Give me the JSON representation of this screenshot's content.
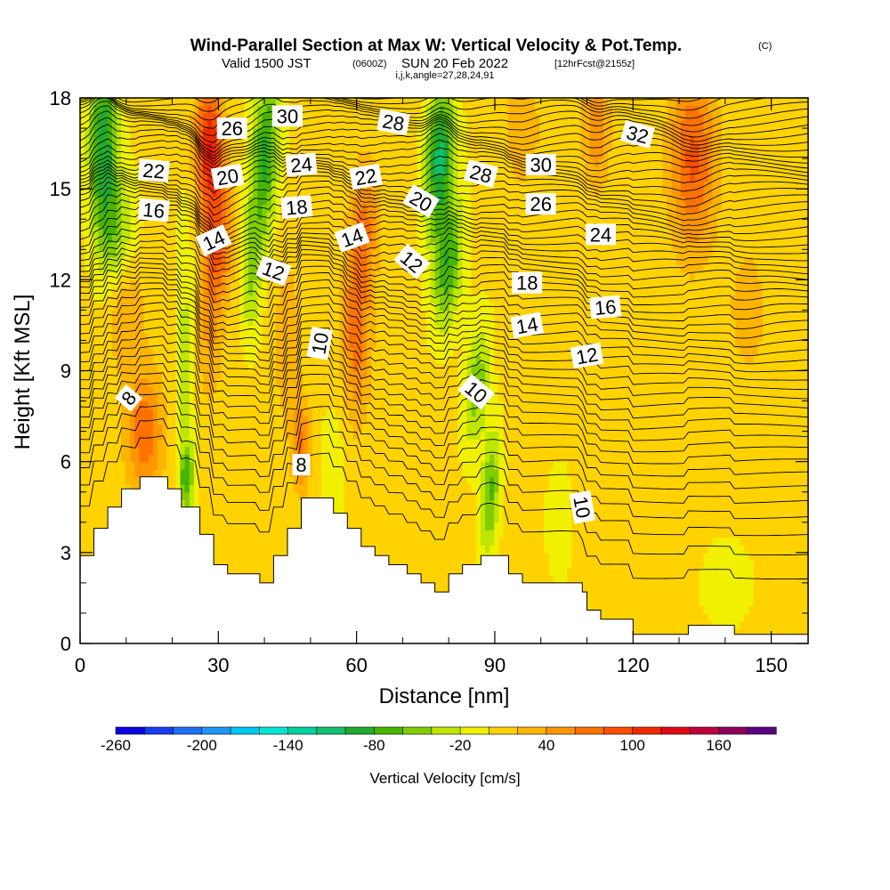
{
  "header": {
    "title": "Wind-Parallel Section at Max W: Vertical Velocity & Pot.Temp.",
    "copyright": "(C)",
    "valid_prefix": "Valid 1500 JST",
    "valid_utc": "(0600Z)",
    "valid_date": "SUN 20 Feb 2022",
    "forecast": "[12hrFcst@2155z]",
    "indices": "i,j,k,angle=27,28,24,91"
  },
  "chart_data": {
    "type": "heatmap",
    "xlabel": "Distance [nm]",
    "ylabel": "Height [Kft MSL]",
    "xlim": [
      0,
      158
    ],
    "ylim": [
      0,
      18
    ],
    "x_ticks": [
      0,
      30,
      60,
      90,
      120,
      150
    ],
    "y_ticks": [
      0,
      3,
      6,
      9,
      12,
      15,
      18
    ],
    "terrain": [
      [
        0,
        2.9
      ],
      [
        3,
        2.9
      ],
      [
        3,
        3.8
      ],
      [
        6,
        3.8
      ],
      [
        6,
        4.5
      ],
      [
        9,
        4.5
      ],
      [
        9,
        5.1
      ],
      [
        13,
        5.1
      ],
      [
        13,
        5.5
      ],
      [
        19,
        5.5
      ],
      [
        19,
        5.1
      ],
      [
        22,
        5.1
      ],
      [
        22,
        4.5
      ],
      [
        26,
        4.5
      ],
      [
        26,
        3.6
      ],
      [
        29,
        3.6
      ],
      [
        29,
        2.6
      ],
      [
        32,
        2.6
      ],
      [
        32,
        2.3
      ],
      [
        39,
        2.3
      ],
      [
        39,
        2.0
      ],
      [
        42,
        2.0
      ],
      [
        42,
        2.9
      ],
      [
        45,
        2.9
      ],
      [
        45,
        3.8
      ],
      [
        48,
        3.8
      ],
      [
        48,
        4.8
      ],
      [
        55,
        4.8
      ],
      [
        55,
        4.3
      ],
      [
        58,
        4.3
      ],
      [
        58,
        3.8
      ],
      [
        61,
        3.8
      ],
      [
        61,
        3.2
      ],
      [
        64,
        3.2
      ],
      [
        64,
        2.9
      ],
      [
        67,
        2.9
      ],
      [
        67,
        2.6
      ],
      [
        71,
        2.6
      ],
      [
        71,
        2.3
      ],
      [
        74,
        2.3
      ],
      [
        74,
        2.0
      ],
      [
        77,
        2.0
      ],
      [
        77,
        1.7
      ],
      [
        80,
        1.7
      ],
      [
        80,
        2.3
      ],
      [
        83,
        2.3
      ],
      [
        83,
        2.6
      ],
      [
        87,
        2.6
      ],
      [
        87,
        2.9
      ],
      [
        93,
        2.9
      ],
      [
        93,
        2.3
      ],
      [
        96,
        2.3
      ],
      [
        96,
        2.0
      ],
      [
        109,
        2.0
      ],
      [
        109,
        1.7
      ],
      [
        110,
        1.7
      ],
      [
        110,
        1.1
      ],
      [
        113,
        1.1
      ],
      [
        113,
        0.8
      ],
      [
        120,
        0.8
      ],
      [
        120,
        0.3
      ],
      [
        132,
        0.3
      ],
      [
        132,
        0.6
      ],
      [
        142,
        0.6
      ],
      [
        142,
        0.3
      ],
      [
        158,
        0.3
      ]
    ],
    "vertical_velocity": {
      "units": "cm/s",
      "colorbar_title": "Vertical Velocity [cm/s]",
      "colorbar_labels": [
        "-260",
        "-200",
        "-140",
        "-80",
        "-20",
        "40",
        "100",
        "160"
      ],
      "levels": [
        -260,
        -240,
        -220,
        -200,
        -180,
        -160,
        -140,
        -120,
        -100,
        -80,
        -60,
        -40,
        -20,
        0,
        20,
        40,
        60,
        80,
        100,
        120,
        140,
        160,
        180
      ],
      "colors": [
        "#0a00e0",
        "#1a3cf0",
        "#1e6ef2",
        "#1e96f2",
        "#00c8f0",
        "#00e6d2",
        "#00d2a0",
        "#10c070",
        "#20aa30",
        "#46b400",
        "#82cc00",
        "#bee600",
        "#f0f000",
        "#ffd200",
        "#ffb400",
        "#ff9600",
        "#ff7200",
        "#fa4e00",
        "#f02800",
        "#e00a14",
        "#c0003c",
        "#8c005a",
        "#5a0082"
      ],
      "features": [
        {
          "x": 5,
          "y": 16.5,
          "sx": 3,
          "sy": 3,
          "tilt": 0.0,
          "w": -100
        },
        {
          "x": 8,
          "y": 13.5,
          "sx": 4,
          "sy": 2,
          "tilt": 0.0,
          "w": -50
        },
        {
          "x": 14,
          "y": 7,
          "sx": 4,
          "sy": 2,
          "tilt": 0.0,
          "w": 70
        },
        {
          "x": 10,
          "y": 11,
          "sx": 4,
          "sy": 2,
          "tilt": 0.0,
          "w": 40
        },
        {
          "x": 23,
          "y": 9,
          "sx": 2,
          "sy": 5,
          "tilt": 0.0,
          "w": -35
        },
        {
          "x": 23,
          "y": 5.5,
          "sx": 1.5,
          "sy": 1,
          "tilt": 0.0,
          "w": -65
        },
        {
          "x": 28,
          "y": 16.5,
          "sx": 3,
          "sy": 2,
          "tilt": 0.0,
          "w": 110
        },
        {
          "x": 30,
          "y": 13.5,
          "sx": 3,
          "sy": 2,
          "tilt": 0.0,
          "w": 70
        },
        {
          "x": 28,
          "y": 11,
          "sx": 3,
          "sy": 3,
          "tilt": 0.0,
          "w": 40
        },
        {
          "x": 40,
          "y": 16,
          "sx": 3,
          "sy": 3,
          "tilt": 0.4,
          "w": -90
        },
        {
          "x": 37,
          "y": 12,
          "sx": 2,
          "sy": 2,
          "tilt": 0.0,
          "w": -40
        },
        {
          "x": 45,
          "y": 10,
          "sx": 3,
          "sy": 3,
          "tilt": 0.0,
          "w": 30
        },
        {
          "x": 48,
          "y": 6.5,
          "sx": 2,
          "sy": 1.5,
          "tilt": 0.0,
          "w": 60
        },
        {
          "x": 60,
          "y": 10.5,
          "sx": 3,
          "sy": 3,
          "tilt": 0.0,
          "w": 70
        },
        {
          "x": 62,
          "y": 14,
          "sx": 3,
          "sy": 2,
          "tilt": 0.0,
          "w": 50
        },
        {
          "x": 55,
          "y": 6,
          "sx": 3,
          "sy": 2,
          "tilt": 0.0,
          "w": -15
        },
        {
          "x": 78,
          "y": 16,
          "sx": 3,
          "sy": 2.5,
          "tilt": 0.3,
          "w": -110
        },
        {
          "x": 80,
          "y": 12.5,
          "sx": 3,
          "sy": 2,
          "tilt": 0.5,
          "w": -80
        },
        {
          "x": 86,
          "y": 8.5,
          "sx": 2.5,
          "sy": 2,
          "tilt": 0.5,
          "w": -60
        },
        {
          "x": 89,
          "y": 5,
          "sx": 2,
          "sy": 2,
          "tilt": 0.3,
          "w": -70
        },
        {
          "x": 96,
          "y": 17,
          "sx": 4,
          "sy": 2,
          "tilt": 0.0,
          "w": 30
        },
        {
          "x": 112,
          "y": 17,
          "sx": 3,
          "sy": 2,
          "tilt": 0.0,
          "w": 50
        },
        {
          "x": 133,
          "y": 16,
          "sx": 5,
          "sy": 3,
          "tilt": 0.0,
          "w": 80
        },
        {
          "x": 145,
          "y": 11,
          "sx": 4,
          "sy": 2,
          "tilt": 0.0,
          "w": 30
        },
        {
          "x": 104,
          "y": 4,
          "sx": 3,
          "sy": 2,
          "tilt": 0.0,
          "w": -15
        },
        {
          "x": 140,
          "y": 2,
          "sx": 6,
          "sy": 1.5,
          "tilt": 0.0,
          "w": -15
        },
        {
          "x": 125,
          "y": 2.5,
          "sx": 6,
          "sy": 2,
          "tilt": 0.0,
          "w": 15
        }
      ]
    },
    "potential_temperature": {
      "contour_labels": [
        {
          "text": "8",
          "x": 10.5,
          "y": 8.1,
          "angle": -50
        },
        {
          "text": "8",
          "x": 48,
          "y": 5.9,
          "angle": 0
        },
        {
          "text": "10",
          "x": 52,
          "y": 9.9,
          "angle": -80
        },
        {
          "text": "10",
          "x": 86,
          "y": 8.3,
          "angle": 40
        },
        {
          "text": "10",
          "x": 109,
          "y": 4.5,
          "angle": 80
        },
        {
          "text": "12",
          "x": 42,
          "y": 12.3,
          "angle": 20
        },
        {
          "text": "12",
          "x": 72,
          "y": 12.6,
          "angle": 40
        },
        {
          "text": "12",
          "x": 110,
          "y": 9.5,
          "angle": -10
        },
        {
          "text": "14",
          "x": 29,
          "y": 13.3,
          "angle": -25
        },
        {
          "text": "14",
          "x": 59,
          "y": 13.4,
          "angle": -20
        },
        {
          "text": "14",
          "x": 97,
          "y": 10.5,
          "angle": -10
        },
        {
          "text": "16",
          "x": 16,
          "y": 14.3,
          "angle": 5
        },
        {
          "text": "16",
          "x": 114,
          "y": 11.1,
          "angle": -5
        },
        {
          "text": "18",
          "x": 47,
          "y": 14.4,
          "angle": -5
        },
        {
          "text": "18",
          "x": 97,
          "y": 11.9,
          "angle": 0
        },
        {
          "text": "20",
          "x": 32,
          "y": 15.4,
          "angle": -10
        },
        {
          "text": "20",
          "x": 74,
          "y": 14.6,
          "angle": 30
        },
        {
          "text": "22",
          "x": 16,
          "y": 15.6,
          "angle": 5
        },
        {
          "text": "22",
          "x": 62,
          "y": 15.4,
          "angle": -10
        },
        {
          "text": "24",
          "x": 48,
          "y": 15.8,
          "angle": -5
        },
        {
          "text": "24",
          "x": 113,
          "y": 13.5,
          "angle": 0
        },
        {
          "text": "26",
          "x": 33,
          "y": 17.0,
          "angle": 0
        },
        {
          "text": "26",
          "x": 100,
          "y": 14.5,
          "angle": 0
        },
        {
          "text": "28",
          "x": 68,
          "y": 17.2,
          "angle": 10
        },
        {
          "text": "28",
          "x": 87,
          "y": 15.5,
          "angle": 15
        },
        {
          "text": "30",
          "x": 45,
          "y": 17.4,
          "angle": 0
        },
        {
          "text": "30",
          "x": 100,
          "y": 15.8,
          "angle": 0
        },
        {
          "text": "32",
          "x": 121,
          "y": 16.8,
          "angle": 15
        }
      ]
    }
  }
}
